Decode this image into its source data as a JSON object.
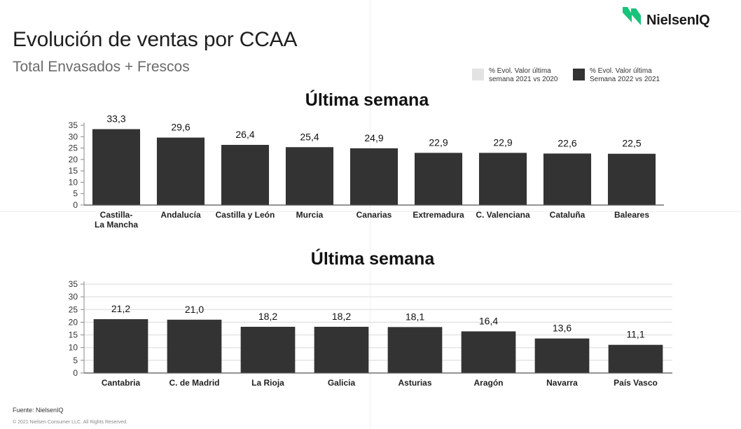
{
  "header": {
    "title": "Evolución de ventas por CCAA",
    "subtitle": "Total Envasados + Frescos",
    "brand": "NielsenIQ"
  },
  "colors": {
    "bar": "#333333",
    "legend_light": "#e3e3e3",
    "legend_dark": "#333333",
    "brand_green": "#18c37a"
  },
  "legend": {
    "items": [
      {
        "label": "% Evol. Valor última semana 2021 vs 2020",
        "color": "#e3e3e3"
      },
      {
        "label": "% Evol. Valor última Semana 2022 vs 2021",
        "color": "#333333"
      }
    ]
  },
  "chart_data": [
    {
      "type": "bar",
      "title": "Última semana",
      "categories": [
        "Castilla-La Mancha",
        "Andalucía",
        "Castilla y León",
        "Murcia",
        "Canarias",
        "Extremadura",
        "C. Valenciana",
        "Cataluña",
        "Baleares"
      ],
      "values": [
        33.3,
        29.6,
        26.4,
        25.4,
        24.9,
        22.9,
        22.9,
        22.6,
        22.5
      ],
      "data_labels": [
        "33,3",
        "29,6",
        "26,4",
        "25,4",
        "24,9",
        "22,9",
        "22,9",
        "22,6",
        "22,5"
      ],
      "yticks": [
        0,
        5,
        10,
        15,
        20,
        25,
        30,
        35
      ],
      "ylim": [
        0,
        35
      ],
      "grid": false
    },
    {
      "type": "bar",
      "title": "Última semana",
      "categories": [
        "Cantabria",
        "C. de Madrid",
        "La Rioja",
        "Galicia",
        "Asturias",
        "Aragón",
        "Navarra",
        "País Vasco"
      ],
      "values": [
        21.2,
        21.0,
        18.2,
        18.2,
        18.1,
        16.4,
        13.6,
        11.1
      ],
      "data_labels": [
        "21,2",
        "21,0",
        "18,2",
        "18,2",
        "18,1",
        "16,4",
        "13,6",
        "11,1"
      ],
      "yticks": [
        0,
        5,
        10,
        15,
        20,
        25,
        30,
        35
      ],
      "ylim": [
        0,
        35
      ],
      "grid": true
    }
  ],
  "footer": {
    "source": "Fuente: NielsenIQ",
    "copyright": "© 2021 Nielsen Consumer LLC. All Rights Reserved."
  }
}
